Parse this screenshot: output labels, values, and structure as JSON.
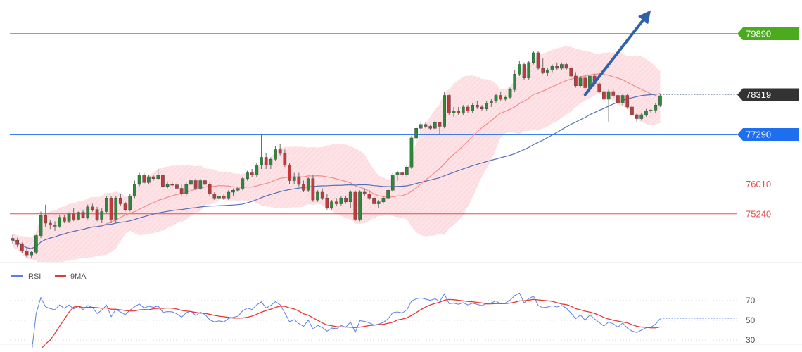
{
  "chart_data": {
    "type": "candlestick",
    "price_ylim": [
      74000,
      80400
    ],
    "levels": [
      {
        "label": "79890",
        "value": 79890,
        "color": "#4caa1e",
        "style": "badge"
      },
      {
        "label": "78319",
        "value": 78319,
        "color": "#333333",
        "style": "current"
      },
      {
        "label": "77290",
        "value": 77290,
        "color": "#1e6ef0",
        "style": "badge"
      },
      {
        "label": "76010",
        "value": 76010,
        "color": "#e0524f",
        "style": "text"
      },
      {
        "label": "75240",
        "value": 75240,
        "color": "#e0524f",
        "style": "text"
      }
    ],
    "forecast_arrow": {
      "color": "#2f62a8",
      "from": [
        122,
        78319
      ],
      "to": [
        136,
        80500
      ]
    },
    "candles": [
      [
        74610,
        74700,
        74460,
        74560
      ],
      [
        74560,
        74620,
        74380,
        74450
      ],
      [
        74450,
        74500,
        74220,
        74280
      ],
      [
        74280,
        74350,
        74120,
        74180
      ],
      [
        74180,
        74280,
        74100,
        74250
      ],
      [
        74250,
        74700,
        74200,
        74680
      ],
      [
        74680,
        75300,
        74620,
        75200
      ],
      [
        75200,
        75480,
        74900,
        75000
      ],
      [
        75000,
        75080,
        74850,
        74950
      ],
      [
        74950,
        75050,
        74800,
        74920
      ],
      [
        74920,
        75200,
        74880,
        75150
      ],
      [
        75150,
        75200,
        75000,
        75050
      ],
      [
        75050,
        75280,
        75000,
        75240
      ],
      [
        75240,
        75400,
        75050,
        75100
      ],
      [
        75100,
        75300,
        75080,
        75280
      ],
      [
        75280,
        75350,
        75120,
        75150
      ],
      [
        75150,
        75480,
        75100,
        75420
      ],
      [
        75420,
        75500,
        75300,
        75350
      ],
      [
        75350,
        75420,
        75050,
        75100
      ],
      [
        75100,
        75400,
        75000,
        75300
      ],
      [
        75300,
        75700,
        75250,
        75650
      ],
      [
        75650,
        75700,
        75000,
        75100
      ],
      [
        75100,
        75700,
        75000,
        75650
      ],
      [
        75650,
        75750,
        75450,
        75500
      ],
      [
        75500,
        75550,
        75300,
        75350
      ],
      [
        75350,
        75750,
        75300,
        75700
      ],
      [
        75700,
        76100,
        75650,
        76000
      ],
      [
        76000,
        76300,
        75950,
        76250
      ],
      [
        76250,
        76300,
        76000,
        76050
      ],
      [
        76050,
        76250,
        76000,
        76200
      ],
      [
        76200,
        76250,
        76100,
        76150
      ],
      [
        76150,
        76400,
        76100,
        76250
      ],
      [
        76250,
        76300,
        75900,
        75950
      ],
      [
        75950,
        76050,
        75900,
        76000
      ],
      [
        76000,
        76050,
        75950,
        75990
      ],
      [
        75990,
        76050,
        75850,
        75900
      ],
      [
        75900,
        76000,
        75700,
        75750
      ],
      [
        75750,
        76050,
        75700,
        76000
      ],
      [
        76000,
        76200,
        75950,
        76100
      ],
      [
        76100,
        76150,
        75850,
        75900
      ],
      [
        75900,
        76150,
        75850,
        76100
      ],
      [
        76100,
        76200,
        75950,
        76000
      ],
      [
        76000,
        76050,
        75700,
        75750
      ],
      [
        75750,
        75800,
        75600,
        75650
      ],
      [
        75650,
        75750,
        75600,
        75700
      ],
      [
        75700,
        75750,
        75600,
        75650
      ],
      [
        75650,
        75850,
        75600,
        75800
      ],
      [
        75800,
        75900,
        75700,
        75850
      ],
      [
        75850,
        75950,
        75800,
        75900
      ],
      [
        75900,
        76200,
        75850,
        76150
      ],
      [
        76150,
        76350,
        76100,
        76300
      ],
      [
        76300,
        76400,
        76200,
        76250
      ],
      [
        76250,
        76550,
        76200,
        76500
      ],
      [
        76500,
        77280,
        76400,
        76700
      ],
      [
        76700,
        76800,
        76400,
        76500
      ],
      [
        76500,
        76700,
        76400,
        76650
      ],
      [
        76650,
        77000,
        76600,
        76900
      ],
      [
        76900,
        77050,
        76750,
        76800
      ],
      [
        76800,
        76900,
        76450,
        76500
      ],
      [
        76500,
        76550,
        76000,
        76100
      ],
      [
        76100,
        76300,
        76000,
        76200
      ],
      [
        76200,
        76300,
        75950,
        76000
      ],
      [
        76000,
        76100,
        75800,
        75850
      ],
      [
        75850,
        76200,
        75800,
        76150
      ],
      [
        76150,
        76250,
        75550,
        75600
      ],
      [
        75600,
        75850,
        75550,
        75800
      ],
      [
        75800,
        75900,
        75600,
        75650
      ],
      [
        75650,
        75750,
        75350,
        75400
      ],
      [
        75400,
        75600,
        75350,
        75550
      ],
      [
        75550,
        75650,
        75450,
        75500
      ],
      [
        75500,
        75700,
        75450,
        75650
      ],
      [
        75650,
        75700,
        75500,
        75550
      ],
      [
        75550,
        75850,
        75400,
        75800
      ],
      [
        75800,
        75850,
        75050,
        75100
      ],
      [
        75100,
        75850,
        75050,
        75800
      ],
      [
        75800,
        75900,
        75700,
        75750
      ],
      [
        75750,
        75850,
        75600,
        75650
      ],
      [
        75650,
        75700,
        75450,
        75500
      ],
      [
        75500,
        75600,
        75400,
        75550
      ],
      [
        75550,
        75700,
        75500,
        75650
      ],
      [
        75650,
        75900,
        75600,
        75850
      ],
      [
        75850,
        76300,
        75800,
        76250
      ],
      [
        76250,
        76350,
        76100,
        76300
      ],
      [
        76300,
        76350,
        76200,
        76250
      ],
      [
        76250,
        76500,
        76200,
        76450
      ],
      [
        76450,
        77250,
        76400,
        77200
      ],
      [
        77200,
        77500,
        77100,
        77450
      ],
      [
        77450,
        77600,
        77300,
        77550
      ],
      [
        77550,
        77600,
        77450,
        77500
      ],
      [
        77500,
        77550,
        77400,
        77450
      ],
      [
        77450,
        77650,
        77400,
        77600
      ],
      [
        77600,
        77550,
        77300,
        77500
      ],
      [
        77500,
        78380,
        77450,
        78300
      ],
      [
        78300,
        78320,
        77800,
        77850
      ],
      [
        77850,
        78000,
        77750,
        77900
      ],
      [
        77900,
        78000,
        77800,
        77850
      ],
      [
        77850,
        78050,
        77800,
        78000
      ],
      [
        78000,
        78050,
        77850,
        77900
      ],
      [
        77900,
        78100,
        77850,
        78050
      ],
      [
        78050,
        78150,
        77950,
        78000
      ],
      [
        78000,
        78050,
        77900,
        77950
      ],
      [
        77950,
        78150,
        77900,
        78100
      ],
      [
        78100,
        78200,
        78000,
        78150
      ],
      [
        78150,
        78350,
        78100,
        78300
      ],
      [
        78300,
        78400,
        78150,
        78200
      ],
      [
        78200,
        78300,
        78150,
        78250
      ],
      [
        78250,
        78500,
        78200,
        78450
      ],
      [
        78450,
        78950,
        78400,
        78850
      ],
      [
        78850,
        79200,
        78800,
        79100
      ],
      [
        79100,
        79150,
        78700,
        78750
      ],
      [
        78750,
        79200,
        78700,
        79150
      ],
      [
        79150,
        79450,
        79100,
        79400
      ],
      [
        79400,
        79450,
        78950,
        79000
      ],
      [
        79000,
        79250,
        78850,
        78900
      ],
      [
        78900,
        79000,
        78800,
        78950
      ],
      [
        78950,
        79100,
        78900,
        79050
      ],
      [
        79050,
        79150,
        78950,
        79000
      ],
      [
        79000,
        79150,
        78950,
        79100
      ],
      [
        79100,
        79150,
        78950,
        79000
      ],
      [
        79000,
        79050,
        78750,
        78800
      ],
      [
        78800,
        78900,
        78500,
        78550
      ],
      [
        78550,
        78800,
        78500,
        78750
      ],
      [
        78750,
        78850,
        78450,
        78500
      ],
      [
        78500,
        78850,
        78450,
        78800
      ],
      [
        78800,
        78850,
        78550,
        78600
      ],
      [
        78600,
        78650,
        78350,
        78400
      ],
      [
        78400,
        78450,
        78150,
        78200
      ],
      [
        78200,
        78450,
        77620,
        78400
      ],
      [
        78400,
        78450,
        78250,
        78300
      ],
      [
        78300,
        78350,
        78050,
        78100
      ],
      [
        78100,
        78350,
        78050,
        78300
      ],
      [
        78300,
        78350,
        77950,
        78000
      ],
      [
        78000,
        78050,
        77750,
        77800
      ],
      [
        77800,
        77850,
        77600,
        77700
      ],
      [
        77700,
        77850,
        77650,
        77800
      ],
      [
        77800,
        77950,
        77750,
        77900
      ],
      [
        77900,
        77950,
        77850,
        77920
      ],
      [
        77920,
        78100,
        77850,
        78050
      ],
      [
        78050,
        78330,
        78000,
        78290
      ]
    ],
    "rsi": {
      "legend": [
        {
          "name": "RSI",
          "color": "#5b7fe6"
        },
        {
          "name": "9MA",
          "color": "#e53935"
        }
      ],
      "yticks": [
        "70",
        "50",
        "30"
      ],
      "ylim": [
        28,
        82
      ],
      "current": 52
    }
  }
}
